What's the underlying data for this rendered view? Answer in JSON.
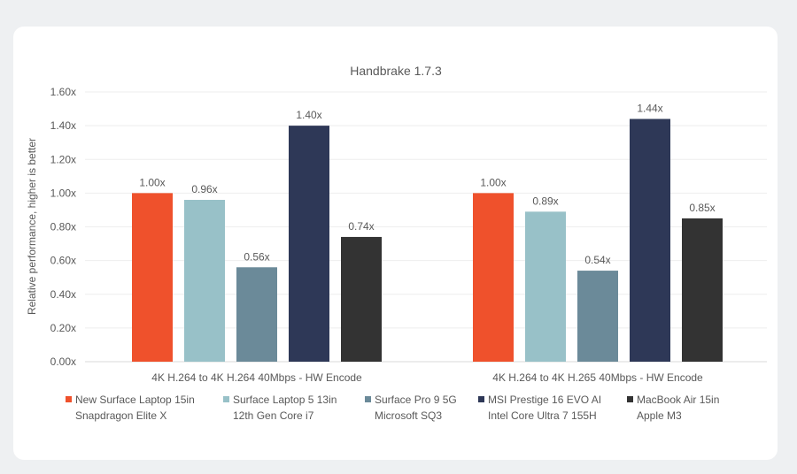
{
  "chart_data": {
    "type": "bar",
    "title": "Handbrake 1.7.3",
    "ylabel": "Relative performance, higher is better",
    "xlabel": "",
    "ylim": [
      0,
      1.6
    ],
    "yticks": [
      "0.00x",
      "0.20x",
      "0.40x",
      "0.60x",
      "0.80x",
      "1.00x",
      "1.20x",
      "1.40x",
      "1.60x"
    ],
    "grid": true,
    "legend_position": "bottom",
    "categories": [
      "4K H.264 to 4K H.264 40Mbps - HW Encode",
      "4K H.264 to 4K H.265 40Mbps - HW Encode"
    ],
    "series": [
      {
        "name": "New Surface Laptop 15in",
        "name2": "Snapdragon Elite X",
        "color": "#ef512c",
        "values": [
          1.0,
          1.0
        ],
        "labels": [
          "1.00x",
          "1.00x"
        ]
      },
      {
        "name": "Surface Laptop 5 13in",
        "name2": "12th Gen Core i7",
        "color": "#98c1c8",
        "values": [
          0.96,
          0.89
        ],
        "labels": [
          "0.96x",
          "0.89x"
        ]
      },
      {
        "name": "Surface Pro 9 5G",
        "name2": "Microsoft SQ3",
        "color": "#6b8a99",
        "values": [
          0.56,
          0.54
        ],
        "labels": [
          "0.56x",
          "0.54x"
        ]
      },
      {
        "name": "MSI Prestige 16 EVO AI",
        "name2": "Intel Core Ultra 7 155H",
        "color": "#2e3857",
        "values": [
          1.4,
          1.44
        ],
        "labels": [
          "1.40x",
          "1.44x"
        ]
      },
      {
        "name": "MacBook Air 15in",
        "name2": "Apple M3",
        "color": "#333333",
        "values": [
          0.74,
          0.85
        ],
        "labels": [
          "0.74x",
          "0.85x"
        ]
      }
    ]
  }
}
